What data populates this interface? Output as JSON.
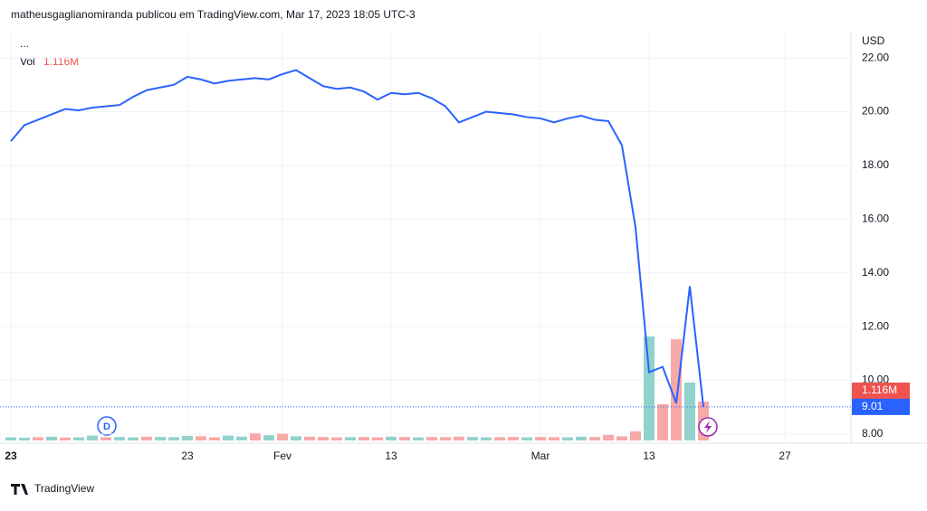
{
  "chart_data": {
    "type": "line",
    "header": "matheusgaglianomiranda publicou em TradingView.com, Mar 17, 2023 18:05 UTC-3",
    "menu": "...",
    "currency": "USD",
    "brand": "TradingView",
    "categories": [
      "23",
      null,
      null,
      null,
      null,
      null,
      null,
      null,
      null,
      null,
      null,
      null,
      null,
      "23",
      null,
      null,
      null,
      null,
      null,
      null,
      "Fev",
      null,
      null,
      null,
      null,
      null,
      null,
      null,
      "13",
      null,
      null,
      null,
      null,
      null,
      null,
      null,
      null,
      null,
      null,
      "Mar",
      null,
      null,
      null,
      null,
      null,
      null,
      null,
      "13",
      null,
      null,
      null,
      null,
      null,
      null,
      null,
      null,
      null,
      "27"
    ],
    "ylim": [
      7.76,
      22.98
    ],
    "yticks": [
      {
        "value": 8,
        "label": "8.00"
      },
      {
        "value": 10,
        "label": "10.00"
      },
      {
        "value": 12,
        "label": "12.00"
      },
      {
        "value": 14,
        "label": "14.00"
      },
      {
        "value": 16,
        "label": "16.00"
      },
      {
        "value": 18,
        "label": "18.00"
      },
      {
        "value": 20,
        "label": "20.00"
      },
      {
        "value": 22,
        "label": "22.00"
      }
    ],
    "grid": true,
    "series": [
      {
        "color": "#2962ff",
        "values": [
          18.9,
          19.5,
          19.7,
          19.9,
          20.1,
          20.05,
          20.15,
          20.2,
          20.25,
          20.55,
          20.8,
          20.9,
          21.0,
          21.3,
          21.2,
          21.05,
          21.15,
          21.2,
          21.25,
          21.2,
          21.4,
          21.55,
          21.25,
          20.95,
          20.85,
          20.9,
          20.75,
          20.45,
          20.7,
          20.65,
          20.7,
          20.5,
          20.2,
          19.6,
          19.8,
          20.0,
          19.95,
          19.9,
          19.8,
          19.75,
          19.6,
          19.75,
          19.85,
          19.7,
          19.65,
          18.75,
          15.7,
          10.3,
          10.5,
          9.15,
          13.5,
          9.01,
          null,
          null,
          null,
          null,
          null,
          null
        ]
      },
      {
        "name": "Vol",
        "last_label": "1.116M",
        "colors": [
          "#92d2cc",
          "#92d2cc",
          "#f7a9a7",
          "#92d2cc",
          "#f7a9a7",
          "#92d2cc",
          "#92d2cc",
          "#f7a9a7",
          "#92d2cc",
          "#92d2cc",
          "#f7a9a7",
          "#92d2cc",
          "#92d2cc",
          "#92d2cc",
          "#f7a9a7",
          "#f7a9a7",
          "#92d2cc",
          "#92d2cc",
          "#f7a9a7",
          "#92d2cc",
          "#f7a9a7",
          "#92d2cc",
          "#f7a9a7",
          "#f7a9a7",
          "#f7a9a7",
          "#92d2cc",
          "#f7a9a7",
          "#f7a9a7",
          "#92d2cc",
          "#f7a9a7",
          "#92d2cc",
          "#f7a9a7",
          "#f7a9a7",
          "#f7a9a7",
          "#92d2cc",
          "#92d2cc",
          "#f7a9a7",
          "#f7a9a7",
          "#92d2cc",
          "#f7a9a7",
          "#f7a9a7",
          "#92d2cc",
          "#92d2cc",
          "#f7a9a7",
          "#f7a9a7",
          "#f7a9a7",
          "#f7a9a7",
          "#92d2cc",
          "#f7a9a7",
          "#f7a9a7",
          "#92d2cc",
          "#f7a9a7",
          null,
          null,
          null,
          null,
          null,
          null
        ],
        "values": [
          90000,
          80000,
          95000,
          110000,
          85000,
          90000,
          140000,
          95000,
          100000,
          90000,
          110000,
          100000,
          95000,
          130000,
          120000,
          90000,
          140000,
          110000,
          200000,
          150000,
          190000,
          120000,
          110000,
          100000,
          90000,
          95000,
          100000,
          90000,
          110000,
          100000,
          90000,
          100000,
          95000,
          110000,
          100000,
          90000,
          95000,
          100000,
          90000,
          100000,
          95000,
          90000,
          110000,
          100000,
          160000,
          120000,
          260000,
          2980000,
          1040000,
          2900000,
          1660000,
          1116000,
          null,
          null,
          null,
          null,
          null,
          null
        ]
      }
    ]
  }
}
